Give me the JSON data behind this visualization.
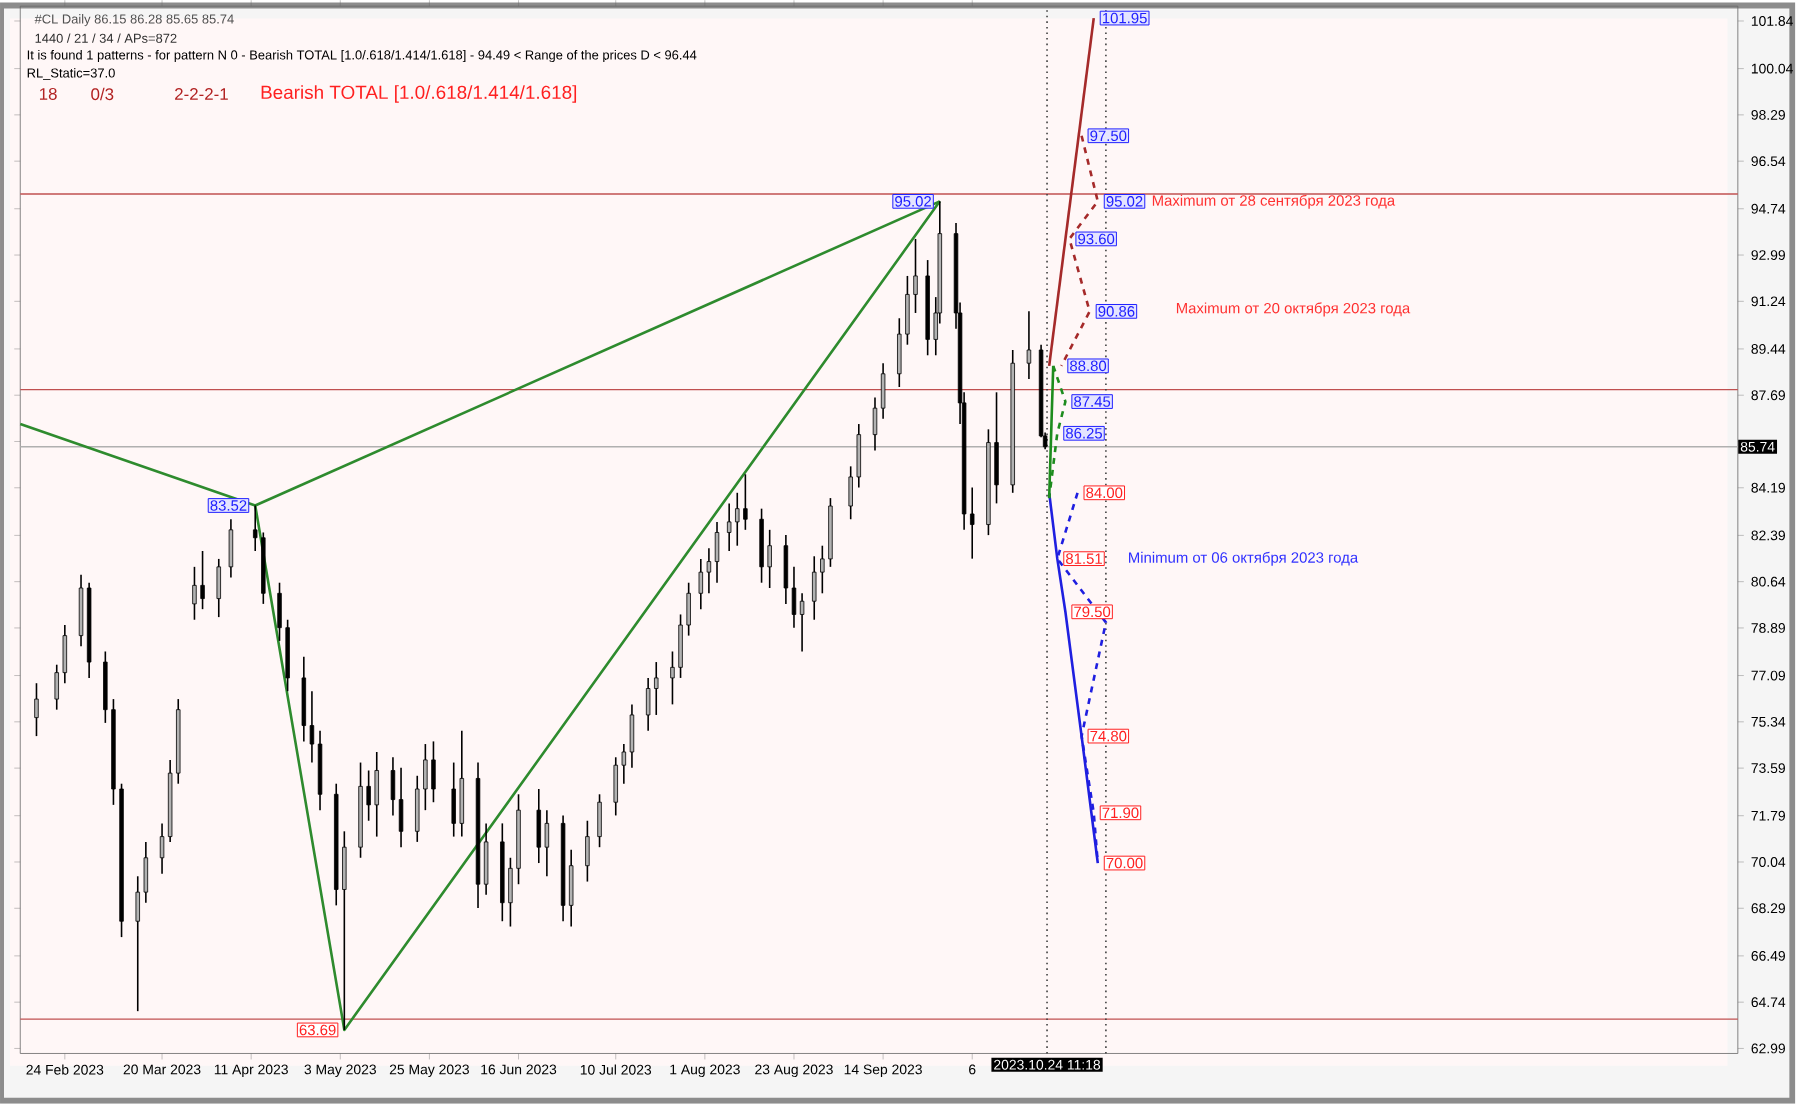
{
  "chart_data": {
    "type": "candlestick",
    "x": [
      "2023-02-17",
      "2023-02-22",
      "2023-02-24",
      "2023-02-28",
      "2023-03-02",
      "2023-03-06",
      "2023-03-08",
      "2023-03-10",
      "2023-03-14",
      "2023-03-16",
      "2023-03-20",
      "2023-03-22",
      "2023-03-24",
      "2023-03-28",
      "2023-03-30",
      "2023-04-03",
      "2023-04-06",
      "2023-04-12",
      "2023-04-14",
      "2023-04-18",
      "2023-04-20",
      "2023-04-24",
      "2023-04-26",
      "2023-04-28",
      "2023-05-02",
      "2023-05-04",
      "2023-05-08",
      "2023-05-10",
      "2023-05-12",
      "2023-05-16",
      "2023-05-18",
      "2023-05-22",
      "2023-05-24",
      "2023-05-26",
      "2023-05-31",
      "2023-06-02",
      "2023-06-06",
      "2023-06-08",
      "2023-06-12",
      "2023-06-14",
      "2023-06-16",
      "2023-06-21",
      "2023-06-23",
      "2023-06-27",
      "2023-06-29",
      "2023-07-03",
      "2023-07-06",
      "2023-07-10",
      "2023-07-12",
      "2023-07-14",
      "2023-07-18",
      "2023-07-20",
      "2023-07-24",
      "2023-07-26",
      "2023-07-28",
      "2023-07-31",
      "2023-08-02",
      "2023-08-04",
      "2023-08-07",
      "2023-08-09",
      "2023-08-11",
      "2023-08-15",
      "2023-08-17",
      "2023-08-21",
      "2023-08-23",
      "2023-08-25",
      "2023-08-28",
      "2023-08-30",
      "2023-09-01",
      "2023-09-06",
      "2023-09-08",
      "2023-09-12",
      "2023-09-14",
      "2023-09-18",
      "2023-09-20",
      "2023-09-22",
      "2023-09-25",
      "2023-09-27",
      "2023-09-28",
      "2023-10-02",
      "2023-10-03",
      "2023-10-04",
      "2023-10-06",
      "2023-10-10",
      "2023-10-12",
      "2023-10-16",
      "2023-10-20",
      "2023-10-23",
      "2023-10-24"
    ],
    "ohlc": [
      [
        75.5,
        76.8,
        74.8,
        76.2
      ],
      [
        76.2,
        77.5,
        75.8,
        77.2
      ],
      [
        77.2,
        79.0,
        76.8,
        78.6
      ],
      [
        78.6,
        80.9,
        78.2,
        80.4
      ],
      [
        80.4,
        80.6,
        77.0,
        77.6
      ],
      [
        77.6,
        78.0,
        75.3,
        75.8
      ],
      [
        75.8,
        76.2,
        72.2,
        72.8
      ],
      [
        72.8,
        73.0,
        67.2,
        67.8
      ],
      [
        67.8,
        69.5,
        64.4,
        68.9
      ],
      [
        68.9,
        70.8,
        68.5,
        70.2
      ],
      [
        70.2,
        71.5,
        69.6,
        71.0
      ],
      [
        71.0,
        73.9,
        70.8,
        73.4
      ],
      [
        73.4,
        76.2,
        73.0,
        75.8
      ],
      [
        79.8,
        81.2,
        79.2,
        80.5
      ],
      [
        80.5,
        81.8,
        79.6,
        80.0
      ],
      [
        80.0,
        81.5,
        79.3,
        81.2
      ],
      [
        81.2,
        83.0,
        80.8,
        82.6
      ],
      [
        82.6,
        83.52,
        81.8,
        82.3
      ],
      [
        82.3,
        82.5,
        79.8,
        80.2
      ],
      [
        80.2,
        80.6,
        78.4,
        78.9
      ],
      [
        78.9,
        79.2,
        76.5,
        77.0
      ],
      [
        77.0,
        77.8,
        74.6,
        75.2
      ],
      [
        75.2,
        76.5,
        73.8,
        74.5
      ],
      [
        74.5,
        75.0,
        72.0,
        72.6
      ],
      [
        72.6,
        73.0,
        68.4,
        69.0
      ],
      [
        69.0,
        71.2,
        63.69,
        70.6
      ],
      [
        70.6,
        73.8,
        70.2,
        72.9
      ],
      [
        72.9,
        73.5,
        71.6,
        72.2
      ],
      [
        72.2,
        74.2,
        71.0,
        73.5
      ],
      [
        73.5,
        74.0,
        71.8,
        72.4
      ],
      [
        72.4,
        73.6,
        70.6,
        71.2
      ],
      [
        71.2,
        73.3,
        70.8,
        72.8
      ],
      [
        72.8,
        74.5,
        72.0,
        73.9
      ],
      [
        73.9,
        74.6,
        72.3,
        72.8
      ],
      [
        72.8,
        73.8,
        71.0,
        71.5
      ],
      [
        71.5,
        75.0,
        71.0,
        73.2
      ],
      [
        73.2,
        73.8,
        68.3,
        69.2
      ],
      [
        69.2,
        71.5,
        68.8,
        70.8
      ],
      [
        70.8,
        71.5,
        67.8,
        68.5
      ],
      [
        68.5,
        70.2,
        67.6,
        69.8
      ],
      [
        69.8,
        72.6,
        69.2,
        72.0
      ],
      [
        72.0,
        72.8,
        70.0,
        70.6
      ],
      [
        70.6,
        72.0,
        69.5,
        71.5
      ],
      [
        71.5,
        71.8,
        67.8,
        68.4
      ],
      [
        68.4,
        70.5,
        67.6,
        69.9
      ],
      [
        69.9,
        71.6,
        69.3,
        71.0
      ],
      [
        71.0,
        72.6,
        70.6,
        72.3
      ],
      [
        72.3,
        74.0,
        71.8,
        73.7
      ],
      [
        73.7,
        74.5,
        73.0,
        74.2
      ],
      [
        74.2,
        76.0,
        73.6,
        75.6
      ],
      [
        75.6,
        77.0,
        75.0,
        76.6
      ],
      [
        76.6,
        77.6,
        75.6,
        77.0
      ],
      [
        77.0,
        78.0,
        76.0,
        77.4
      ],
      [
        77.4,
        79.4,
        77.0,
        79.0
      ],
      [
        79.0,
        80.6,
        78.6,
        80.2
      ],
      [
        80.2,
        81.5,
        79.6,
        81.0
      ],
      [
        81.0,
        81.9,
        80.2,
        81.4
      ],
      [
        81.4,
        82.9,
        80.6,
        82.5
      ],
      [
        82.5,
        83.6,
        81.8,
        82.9
      ],
      [
        82.9,
        84.0,
        82.0,
        83.4
      ],
      [
        83.4,
        84.7,
        82.6,
        83.0
      ],
      [
        83.0,
        83.4,
        80.6,
        81.2
      ],
      [
        81.2,
        82.6,
        80.4,
        82.0
      ],
      [
        82.0,
        82.4,
        79.8,
        80.4
      ],
      [
        80.4,
        81.2,
        78.9,
        79.4
      ],
      [
        79.4,
        80.2,
        78.0,
        79.9
      ],
      [
        79.9,
        81.6,
        79.2,
        81.0
      ],
      [
        81.0,
        82.0,
        80.2,
        81.5
      ],
      [
        81.5,
        83.8,
        81.2,
        83.5
      ],
      [
        83.5,
        85.0,
        83.0,
        84.6
      ],
      [
        84.6,
        86.6,
        84.2,
        86.2
      ],
      [
        86.2,
        87.6,
        85.6,
        87.2
      ],
      [
        87.2,
        88.9,
        86.8,
        88.5
      ],
      [
        88.5,
        90.6,
        88.0,
        90.0
      ],
      [
        90.0,
        92.2,
        89.6,
        91.5
      ],
      [
        91.5,
        93.6,
        90.8,
        92.2
      ],
      [
        92.2,
        92.8,
        89.2,
        89.8
      ],
      [
        89.8,
        91.4,
        89.2,
        90.8
      ],
      [
        90.8,
        95.02,
        90.4,
        93.8
      ],
      [
        93.8,
        94.2,
        90.2,
        90.8
      ],
      [
        90.8,
        91.2,
        86.6,
        87.4
      ],
      [
        87.4,
        87.8,
        82.6,
        83.2
      ],
      [
        83.2,
        84.2,
        81.51,
        82.8
      ],
      [
        82.8,
        86.4,
        82.4,
        85.9
      ],
      [
        85.9,
        87.8,
        83.6,
        84.3
      ],
      [
        84.3,
        89.4,
        84.0,
        88.9
      ],
      [
        88.9,
        90.86,
        88.3,
        89.4
      ],
      [
        89.4,
        89.6,
        86.1,
        86.15
      ],
      [
        86.15,
        86.28,
        85.65,
        85.74
      ]
    ],
    "series": [
      {
        "type": "line",
        "color": "#2e8b2e",
        "x": [
          "2023-02-13",
          "2023-04-12",
          "2023-05-04",
          "2023-09-28"
        ],
        "values": [
          86.6,
          83.52,
          63.69,
          95.02
        ]
      },
      {
        "type": "line",
        "color": "#2e8b2e",
        "x": [
          "2023-04-12",
          "2023-09-28"
        ],
        "values": [
          83.52,
          95.02
        ]
      },
      {
        "type": "line",
        "color": "#a52a2a",
        "x": [
          "2023-10-25",
          "2023-11-05"
        ],
        "values": [
          88.8,
          101.95
        ]
      },
      {
        "type": "line",
        "color": "#a52a2a",
        "line_style": "dashed",
        "x": [
          "2023-11-02",
          "2023-11-06",
          "2023-10-30",
          "2023-11-04",
          "2023-10-28"
        ],
        "values": [
          97.5,
          95.02,
          93.6,
          90.86,
          88.8
        ]
      },
      {
        "type": "line",
        "color": "#1f1fe0",
        "x": [
          "2023-10-25",
          "2023-10-27",
          "2023-10-29",
          "2023-11-02",
          "2023-11-06"
        ],
        "values": [
          84.0,
          81.51,
          79.5,
          74.8,
          70.0
        ]
      },
      {
        "type": "line",
        "color": "#1f1fe0",
        "line_style": "dashed",
        "x": [
          "2023-11-01",
          "2023-10-27",
          "2023-11-08",
          "2023-11-02",
          "2023-11-05",
          "2023-11-06"
        ],
        "values": [
          84.0,
          81.51,
          79.1,
          74.8,
          71.9,
          70.0
        ]
      },
      {
        "type": "line",
        "color": "#1e8c1e",
        "x": [
          "2023-10-25",
          "2023-10-26"
        ],
        "values": [
          83.8,
          88.8
        ]
      },
      {
        "type": "line",
        "color": "#1e8c1e",
        "line_style": "dashed",
        "x": [
          "2023-10-26",
          "2023-10-29",
          "2023-10-27",
          "2023-10-25"
        ],
        "values": [
          88.8,
          87.45,
          86.25,
          83.8
        ]
      }
    ],
    "xlim": [
      "2023-02-13",
      "2024-04-12"
    ],
    "ylim": [
      62.8,
      102.4
    ],
    "xticks": [
      {
        "value": "2023-02-24",
        "label": "24 Feb 2023"
      },
      {
        "value": "2023-03-20",
        "label": "20 Mar 2023"
      },
      {
        "value": "2023-04-11",
        "label": "11 Apr 2023"
      },
      {
        "value": "2023-05-03",
        "label": "3 May 2023"
      },
      {
        "value": "2023-05-25",
        "label": "25 May 2023"
      },
      {
        "value": "2023-06-16",
        "label": "16 Jun 2023"
      },
      {
        "value": "2023-07-10",
        "label": "10 Jul 2023"
      },
      {
        "value": "2023-08-01",
        "label": "1 Aug 2023"
      },
      {
        "value": "2023-08-23",
        "label": "23 Aug 2023"
      },
      {
        "value": "2023-09-14",
        "label": "14 Sep 2023"
      },
      {
        "value": "2023-10-06",
        "label": "6"
      }
    ],
    "yticks": [
      101.84,
      100.04,
      98.29,
      96.54,
      94.74,
      92.99,
      91.24,
      89.44,
      87.69,
      {
        "value": 85.94,
        "label": null
      },
      84.19,
      82.39,
      80.64,
      78.89,
      77.09,
      75.34,
      73.59,
      71.79,
      70.04,
      68.29,
      66.49,
      64.74,
      62.99
    ],
    "ref_lines": [
      {
        "axis": "y",
        "value": 85.74,
        "label": "85.74",
        "color": "#b0b0b0"
      },
      {
        "axis": "y",
        "value": 95.3,
        "color": "#c05050"
      },
      {
        "axis": "y",
        "value": 87.9,
        "color": "#c05050"
      },
      {
        "axis": "y",
        "value": 64.1,
        "color": "#c05050"
      },
      {
        "axis": "x",
        "value": "2023-10-24T11:18",
        "label": "2023.10.24 11:18",
        "color": "#404040",
        "line_style": "dotted"
      },
      {
        "axis": "x",
        "value": "2023-11-08",
        "color": "#404040",
        "line_style": "dotted"
      }
    ],
    "annotations": [
      "#CL Daily  86.15 86.28 85.65 85.74",
      "1440 / 21 / 34 / APs=872",
      "It is found 1 patterns  -  for pattern N 0 - Bearish TOTAL [1.0/.618/1.414/1.618] - 94.49 < Range of the prices D < 96.44",
      "RL_Static=37.0",
      "18",
      "0/3",
      "2-2-2-1",
      "Bearish TOTAL [1.0/.618/1.414/1.618]",
      "Maximum  от 28 сентября 2023 года",
      "Maximum  от 20 октября 2023 года",
      "Minimum  от 06 октября 2023 года",
      {
        "text": "101.95",
        "x": "2023-11-05",
        "y": 101.95
      },
      {
        "text": "97.50",
        "x": "2023-11-02",
        "y": 97.5
      },
      {
        "text": "95.02",
        "x": "2023-11-06",
        "y": 95.02
      },
      {
        "text": "93.60",
        "x": "2023-10-30",
        "y": 93.6
      },
      {
        "text": "90.86",
        "x": "2023-11-04",
        "y": 90.86
      },
      {
        "text": "88.80",
        "x": "2023-10-28",
        "y": 88.8
      },
      {
        "text": "87.45",
        "x": "2023-10-29",
        "y": 87.45
      },
      {
        "text": "86.25",
        "x": "2023-10-27",
        "y": 86.25
      },
      {
        "text": "84.00",
        "x": "2023-11-01",
        "y": 84.0
      },
      {
        "text": "81.51",
        "x": "2023-10-27",
        "y": 81.51
      },
      {
        "text": "79.50",
        "x": "2023-10-29",
        "y": 79.5
      },
      {
        "text": "74.80",
        "x": "2023-11-02",
        "y": 74.8
      },
      {
        "text": "71.90",
        "x": "2023-11-05",
        "y": 71.9
      },
      {
        "text": "70.00",
        "x": "2023-11-06",
        "y": 70.0
      },
      {
        "text": "83.52",
        "x": "2023-04-12",
        "y": 83.52
      },
      {
        "text": "63.69",
        "x": "2023-05-04",
        "y": 63.69
      },
      {
        "text": "95.02",
        "x": "2023-09-28",
        "y": 95.02
      }
    ]
  }
}
